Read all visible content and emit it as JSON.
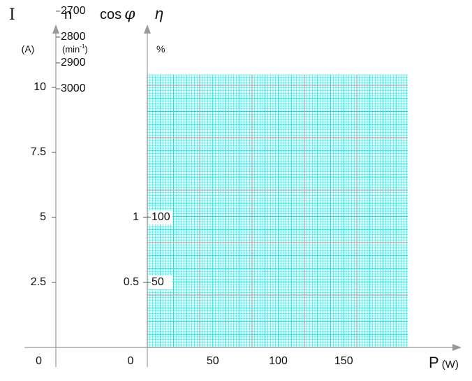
{
  "chart_data": {
    "type": "line",
    "grid": true,
    "grid_color": "#00e5e5",
    "major_grid_color": "#c8a0a0",
    "axis_color": "#999999",
    "x_axis": {
      "label": "P",
      "unit": "(W)",
      "ticks": [
        "0",
        "50",
        "100",
        "150"
      ],
      "tick_values": [
        0,
        50,
        100,
        150
      ]
    },
    "current_axis": {
      "label": "I",
      "unit": "(A)",
      "ticks": [
        "0",
        "2.5",
        "5",
        "7.5",
        "10"
      ],
      "tick_values": [
        0,
        2.5,
        5,
        7.5,
        10
      ]
    },
    "speed_axis": {
      "label": "n",
      "unit": "(min",
      "unit_sup": "-1",
      "unit_close": ")",
      "ticks": [
        "2700",
        "2800",
        "2900",
        "3000"
      ],
      "tick_values": [
        2700,
        2800,
        2900,
        3000
      ]
    },
    "cosphi_axis": {
      "label": "cos",
      "symbol": "φ",
      "ticks": [
        "0",
        "0.5",
        "1"
      ],
      "tick_values": [
        0,
        0.5,
        1
      ]
    },
    "efficiency_axis": {
      "label": "η",
      "unit": "%",
      "ticks": [
        "50",
        "100"
      ],
      "tick_values": [
        50,
        100
      ]
    },
    "series": []
  }
}
